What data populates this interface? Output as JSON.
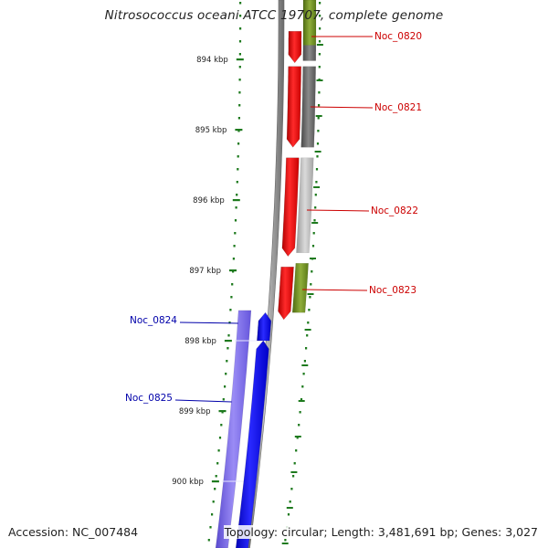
{
  "title": "Nitrosococcus oceani ATCC 19707, complete genome",
  "footer": {
    "accession": "Accession: NC_007484",
    "info": "Topology: circular; Length: 3,481,691 bp; Genes: 3,027"
  },
  "colors": {
    "forward_cds": "#ff0000",
    "reverse_cds": "#0000ff",
    "backbone": "#808080",
    "tick": "#1e7a1e",
    "forward_label": "#cc0000",
    "reverse_label": "#0000aa",
    "gc_green": "#6b8e23",
    "band_purple": "#7b68ee"
  },
  "scale": {
    "ticks": [
      {
        "kbp": 894,
        "label": "894 kbp"
      },
      {
        "kbp": 895,
        "label": "895 kbp"
      },
      {
        "kbp": 896,
        "label": "896 kbp"
      },
      {
        "kbp": 897,
        "label": "897 kbp"
      },
      {
        "kbp": 898,
        "label": "898 kbp"
      },
      {
        "kbp": 899,
        "label": "899 kbp"
      },
      {
        "kbp": 900,
        "label": "900 kbp"
      }
    ]
  },
  "genes": [
    {
      "id": "Noc_0820",
      "strand": "forward",
      "start_kbp": 893.6,
      "end_kbp": 894.05
    },
    {
      "id": "Noc_0821",
      "strand": "forward",
      "start_kbp": 894.1,
      "end_kbp": 895.25
    },
    {
      "id": "Noc_0822",
      "strand": "forward",
      "start_kbp": 895.4,
      "end_kbp": 896.8
    },
    {
      "id": "Noc_0823",
      "strand": "forward",
      "start_kbp": 896.95,
      "end_kbp": 897.7
    },
    {
      "id": "Noc_0824",
      "strand": "reverse",
      "start_kbp": 897.6,
      "end_kbp": 898.0
    },
    {
      "id": "Noc_0825",
      "strand": "reverse",
      "start_kbp": 898.0,
      "end_kbp": 899.8
    }
  ],
  "labels": [
    {
      "gene": "Noc_0820",
      "text": "Noc_0820"
    },
    {
      "gene": "Noc_0821",
      "text": "Noc_0821"
    },
    {
      "gene": "Noc_0822",
      "text": "Noc_0822"
    },
    {
      "gene": "Noc_0823",
      "text": "Noc_0823"
    },
    {
      "gene": "Noc_0824",
      "text": "Noc_0824"
    },
    {
      "gene": "Noc_0825",
      "text": "Noc_0825"
    }
  ]
}
